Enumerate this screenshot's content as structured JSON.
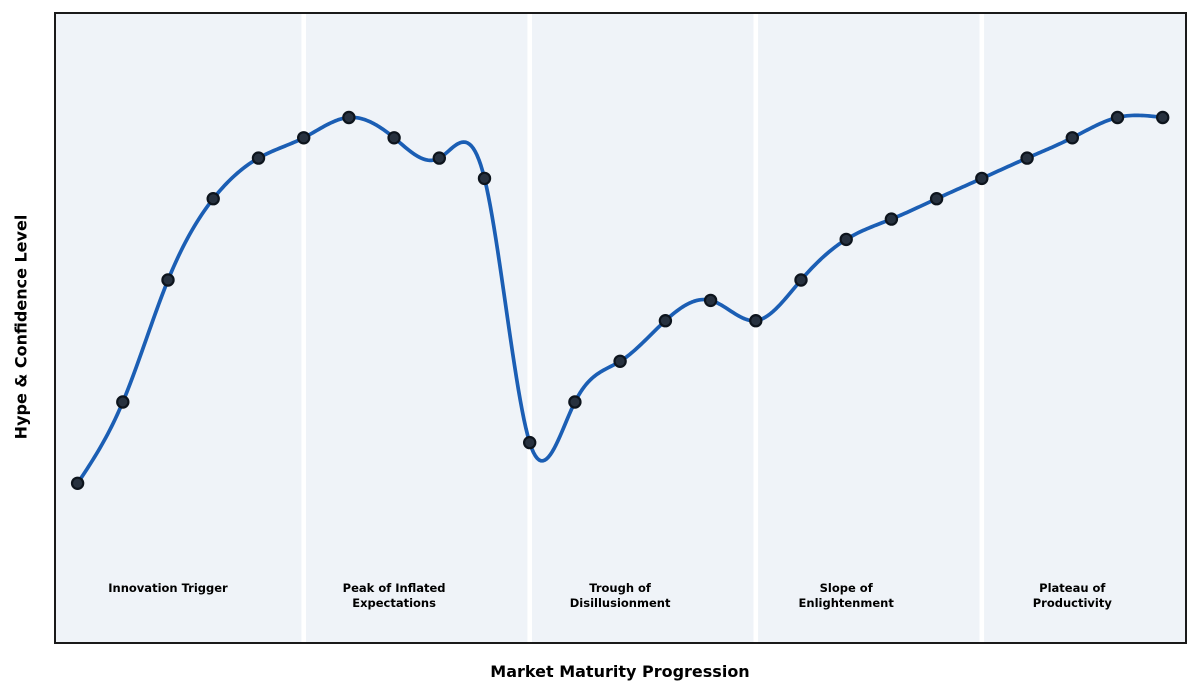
{
  "chart_data": {
    "type": "line",
    "title": "",
    "xlabel": "Market Maturity Progression",
    "ylabel": "Hype & Confidence Level",
    "x": [
      0,
      1,
      2,
      3,
      4,
      5,
      6,
      7,
      8,
      9,
      10,
      11,
      12,
      13,
      14,
      15,
      16,
      17,
      18,
      19,
      20,
      21,
      22,
      23,
      24
    ],
    "y": [
      10,
      30,
      60,
      80,
      90,
      95,
      100,
      95,
      90,
      85,
      20,
      30,
      40,
      50,
      55,
      50,
      60,
      70,
      75,
      80,
      85,
      90,
      95,
      100,
      100
    ],
    "xlim": [
      -0.5,
      24.5
    ],
    "ylim": [
      -29.3,
      125.7
    ],
    "grid": false,
    "legend": "none",
    "curve_style": "smooth-cubic-spline",
    "marker": "circle",
    "colors": {
      "line": "#1b5eb4",
      "marker_fill": "#27313f",
      "marker_edge": "#0d141d",
      "plot_background": "#eff3f8",
      "phase_divider": "#ffffff",
      "spine": "#1a1a1a",
      "text": "#000000"
    },
    "phase_boundaries_x": [
      5,
      10,
      15,
      20
    ],
    "phases": [
      {
        "label": "Innovation Trigger",
        "center_x": 2
      },
      {
        "label": "Peak of Inflated\nExpectations",
        "center_x": 7
      },
      {
        "label": "Trough of\nDisillusionment",
        "center_x": 12
      },
      {
        "label": "Slope of\nEnlightenment",
        "center_x": 17
      },
      {
        "label": "Plateau of\nProductivity",
        "center_x": 22
      }
    ]
  }
}
